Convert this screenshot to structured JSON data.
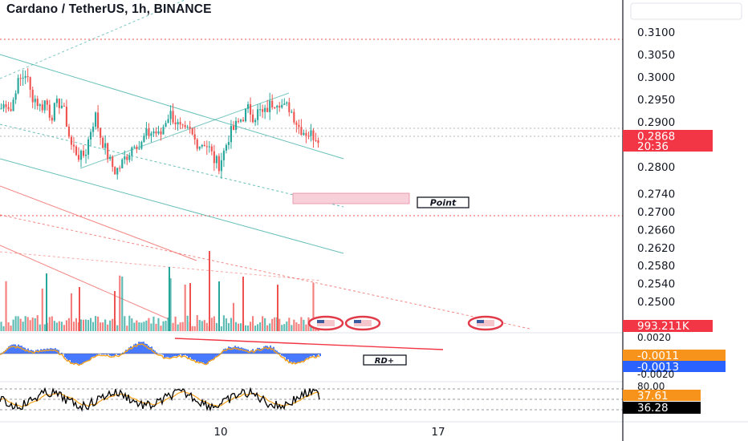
{
  "header": {
    "title": "Cardano / TetherUS, 1h, BINANCE"
  },
  "price_scale": {
    "ticks": [
      "0.3100",
      "0.3050",
      "0.3000",
      "0.2950",
      "0.2900",
      "0.2800",
      "0.2740",
      "0.2700",
      "0.2660",
      "0.2620",
      "0.2580",
      "0.2540",
      "0.2500"
    ],
    "current_price": "0.2868",
    "countdown": "20:36",
    "volume_tag": "993.211K"
  },
  "macd_scale": {
    "ticks": [
      "0.0020",
      "-0.0020"
    ],
    "tag_orange": "-0.0011",
    "tag_blue": "-0.0013"
  },
  "rsi_scale": {
    "ticks": [
      "80.00"
    ],
    "tag_orange": "37.61",
    "tag_black": "36.28"
  },
  "time_axis": {
    "labels": [
      "10",
      "17"
    ]
  },
  "annotations": {
    "point_label": "Point",
    "rd_label": "RD+"
  },
  "colors": {
    "up": "#26a69a",
    "down": "#ef5350",
    "macd_hist": "#2962ff",
    "signal": "#f7a21b",
    "accent": "#f23645"
  },
  "chart_data": {
    "type": "candlestick",
    "title": "Cardano / TetherUS, 1h, BINANCE",
    "ylim": [
      0.249,
      0.3125
    ],
    "y_ticks": [
      0.31,
      0.305,
      0.3,
      0.295,
      0.29,
      0.28,
      0.274,
      0.27,
      0.266,
      0.262,
      0.258,
      0.254,
      0.25
    ],
    "last_price": 0.2868,
    "x_ticks": [
      "10",
      "17"
    ],
    "close_path": [
      0.293,
      0.2945,
      0.2925,
      0.298,
      0.2995,
      0.301,
      0.296,
      0.295,
      0.293,
      0.295,
      0.291,
      0.2935,
      0.2945,
      0.291,
      0.285,
      0.2835,
      0.282,
      0.283,
      0.288,
      0.2915,
      0.287,
      0.284,
      0.281,
      0.279,
      0.28,
      0.282,
      0.2835,
      0.286,
      0.284,
      0.287,
      0.2875,
      0.288,
      0.2865,
      0.29,
      0.292,
      0.2905,
      0.2885,
      0.2875,
      0.288,
      0.286,
      0.285,
      0.2855,
      0.284,
      0.2815,
      0.2805,
      0.2835,
      0.287,
      0.2885,
      0.29,
      0.2915,
      0.293,
      0.291,
      0.2925,
      0.2915,
      0.2935,
      0.2945,
      0.295,
      0.293,
      0.2935,
      0.2915,
      0.289,
      0.288,
      0.2875,
      0.287,
      0.2868
    ]
  }
}
